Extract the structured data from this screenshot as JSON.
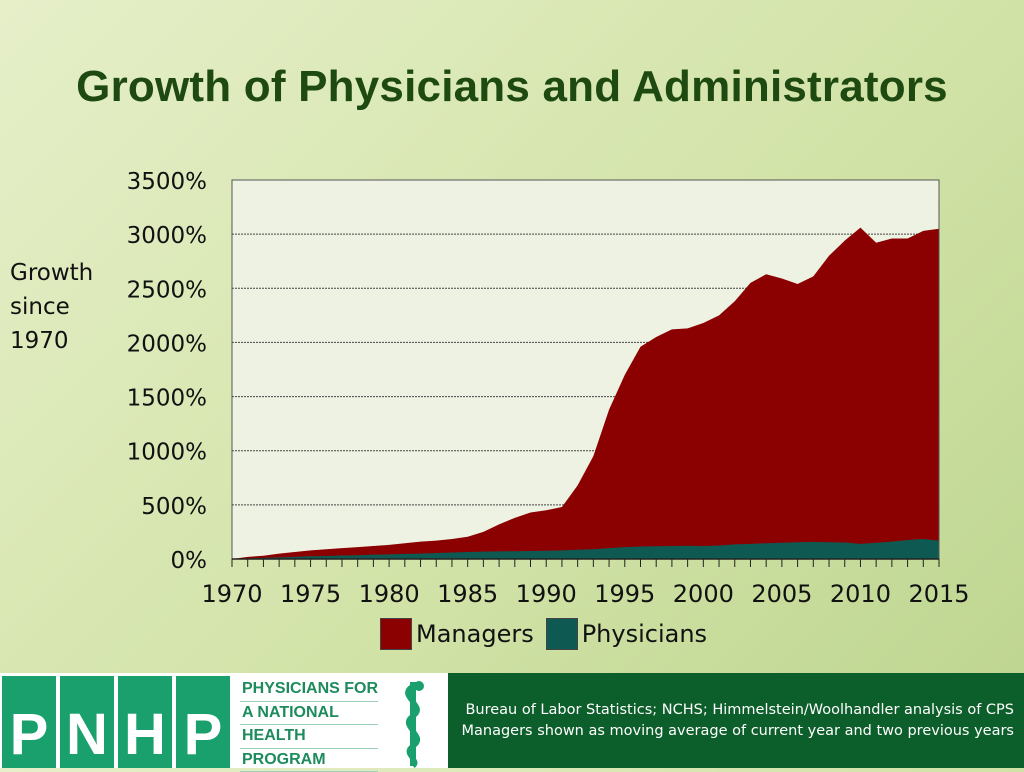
{
  "title": "Growth of Physicians and Administrators",
  "ylabel_lines": [
    "Growth",
    "since",
    "1970"
  ],
  "colors": {
    "managers": "#8b0000",
    "physicians": "#0e5a52",
    "plot_bg": "#eef2e2",
    "title": "#1e4a12"
  },
  "chart_data": {
    "type": "area",
    "title": "Growth of Physicians and Administrators",
    "ylabel": "Growth since 1970",
    "xlim": [
      1970,
      2015
    ],
    "ylim": [
      0,
      3500
    ],
    "y_ticks": [
      0,
      500,
      1000,
      1500,
      2000,
      2500,
      3000,
      3500
    ],
    "y_tick_labels": [
      "0%",
      "500%",
      "1000%",
      "1500%",
      "2000%",
      "2500%",
      "3000%",
      "3500%"
    ],
    "x_tick_labels": [
      "1970",
      "1975",
      "1980",
      "1985",
      "1990",
      "1995",
      "2000",
      "2005",
      "2010",
      "2015"
    ],
    "x_ticks": [
      1970,
      1975,
      1980,
      1985,
      1990,
      1995,
      2000,
      2005,
      2010,
      2015
    ],
    "grid": true,
    "stacked": false,
    "x": [
      1970,
      1971,
      1972,
      1973,
      1974,
      1975,
      1976,
      1977,
      1978,
      1979,
      1980,
      1981,
      1982,
      1983,
      1984,
      1985,
      1986,
      1987,
      1988,
      1989,
      1990,
      1991,
      1992,
      1993,
      1994,
      1995,
      1996,
      1997,
      1998,
      1999,
      2000,
      2001,
      2002,
      2003,
      2004,
      2005,
      2006,
      2007,
      2008,
      2009,
      2010,
      2011,
      2012,
      2013,
      2014,
      2015
    ],
    "series": [
      {
        "name": "Managers",
        "values": [
          0,
          20,
          30,
          50,
          65,
          80,
          90,
          100,
          110,
          120,
          130,
          145,
          160,
          170,
          185,
          205,
          250,
          320,
          380,
          430,
          450,
          480,
          680,
          950,
          1380,
          1700,
          1960,
          2050,
          2120,
          2130,
          2180,
          2250,
          2380,
          2550,
          2630,
          2590,
          2540,
          2610,
          2800,
          2940,
          3060,
          2920,
          2960,
          2960,
          3030,
          3050
        ]
      },
      {
        "name": "Physicians",
        "values": [
          0,
          5,
          10,
          15,
          20,
          25,
          28,
          32,
          35,
          40,
          43,
          47,
          50,
          55,
          60,
          65,
          68,
          70,
          72,
          74,
          76,
          80,
          85,
          90,
          100,
          110,
          115,
          118,
          120,
          122,
          120,
          125,
          135,
          140,
          145,
          150,
          155,
          158,
          155,
          152,
          140,
          150,
          160,
          175,
          185,
          170
        ]
      }
    ],
    "legend": [
      "Managers",
      "Physicians"
    ],
    "legend_position": "bottom"
  },
  "legend": {
    "managers": "Managers",
    "physicians": "Physicians"
  },
  "footer": {
    "letters": [
      "P",
      "N",
      "H",
      "P"
    ],
    "org_lines": [
      "PHYSICIANS FOR",
      "A NATIONAL",
      "HEALTH",
      "PROGRAM"
    ],
    "credit_line1": "Bureau of Labor Statistics; NCHS; Himmelstein/Woolhandler analysis of CPS",
    "credit_line2": "Managers shown as moving average of current year and two previous years"
  }
}
